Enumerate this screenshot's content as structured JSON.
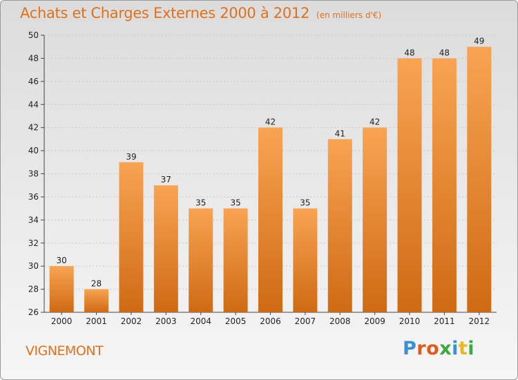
{
  "title": "Achats et Charges Externes 2000 à 2012",
  "unit_note": "(en milliers d'€)",
  "commune": "VIGNEMONT",
  "logo": {
    "letters": [
      "P",
      "r",
      "o",
      "x",
      "i",
      "t",
      "i"
    ],
    "colors": [
      "#3a8fd6",
      "#e05a1e",
      "#e05a1e",
      "#3aaa3a",
      "#3a8fd6",
      "#e8b81c",
      "#3aaa3a"
    ]
  },
  "colors": {
    "bar_top": "#f8a452",
    "bar_bottom": "#cf6a14",
    "title": "#e0711c"
  },
  "chart_data": {
    "type": "bar",
    "categories": [
      "2000",
      "2001",
      "2002",
      "2003",
      "2004",
      "2005",
      "2006",
      "2007",
      "2008",
      "2009",
      "2010",
      "2011",
      "2012"
    ],
    "values": [
      30,
      28,
      39,
      37,
      35,
      35,
      42,
      35,
      41,
      42,
      48,
      48,
      49
    ],
    "ylim": [
      26,
      50
    ],
    "yticks": [
      26,
      28,
      30,
      32,
      34,
      36,
      38,
      40,
      42,
      44,
      46,
      48,
      50
    ],
    "grid": true
  }
}
